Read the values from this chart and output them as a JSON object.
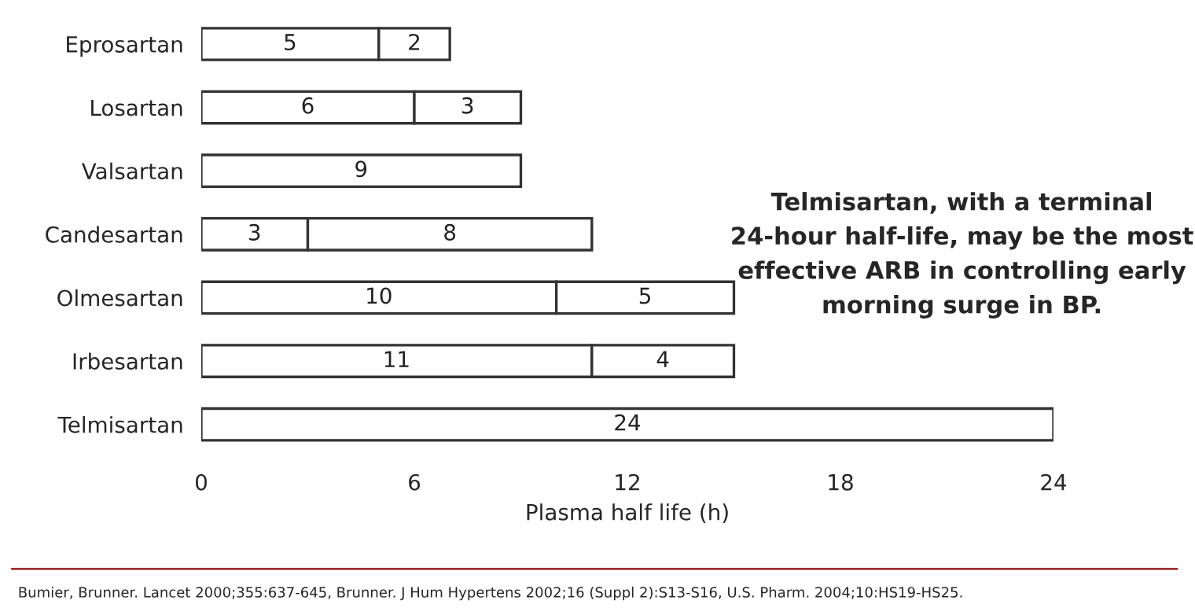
{
  "chart_data": {
    "type": "bar",
    "orientation": "horizontal",
    "stacked": true,
    "data_labels": true,
    "categories": [
      "Eprosartan",
      "Losartan",
      "Valsartan",
      "Candesartan",
      "Olmesartan",
      "Irbesartan",
      "Telmisartan"
    ],
    "series": [
      {
        "color": "#ffffff",
        "values": [
          5,
          6,
          9,
          3,
          10,
          11,
          24
        ]
      },
      {
        "color": "#ffffff",
        "values": [
          2,
          3,
          null,
          8,
          5,
          4,
          null
        ]
      }
    ],
    "xlabel": "Plasma half life (h)",
    "xlim": [
      0,
      24
    ],
    "xticks": [
      0,
      6,
      12,
      18,
      24
    ],
    "grid": false,
    "legend": false,
    "annotations": [
      "Telmisartan, with a terminal 24-hour half-life, may be the most effective ARB in controlling early morning surge in BP.",
      "Bumier, Brunner. Lancet 2000;355:637-645, Brunner. J Hum Hypertens 2002;16 (Suppl 2):S13-S16, U.S. Pharm. 2004;10:HS19-HS25."
    ]
  }
}
